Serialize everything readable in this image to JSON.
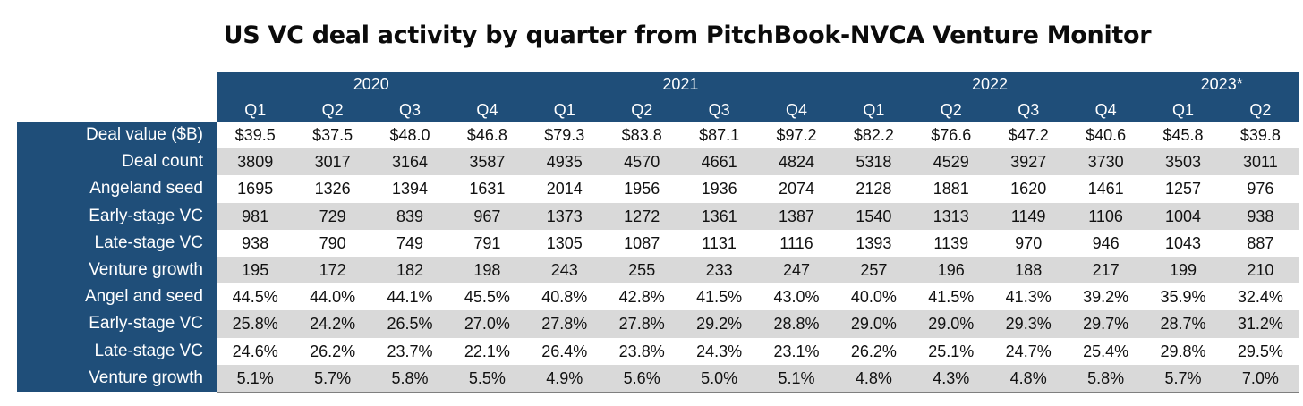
{
  "chart_data": {
    "type": "table",
    "title": "US VC deal activity by quarter from PitchBook-NVCA Venture Monitor",
    "years": [
      {
        "label": "2020",
        "quarters": 4
      },
      {
        "label": "2021",
        "quarters": 4
      },
      {
        "label": "2022",
        "quarters": 4
      },
      {
        "label": "2023*",
        "quarters": 2
      }
    ],
    "columns": [
      "Q1",
      "Q2",
      "Q3",
      "Q4",
      "Q1",
      "Q2",
      "Q3",
      "Q4",
      "Q1",
      "Q2",
      "Q3",
      "Q4",
      "Q1",
      "Q2"
    ],
    "rows": [
      {
        "label": "Deal value ($B)",
        "values": [
          "$39.5",
          "$37.5",
          "$48.0",
          "$46.8",
          "$79.3",
          "$83.8",
          "$87.1",
          "$97.2",
          "$82.2",
          "$76.6",
          "$47.2",
          "$40.6",
          "$45.8",
          "$39.8"
        ]
      },
      {
        "label": "Deal count",
        "values": [
          "3809",
          "3017",
          "3164",
          "3587",
          "4935",
          "4570",
          "4661",
          "4824",
          "5318",
          "4529",
          "3927",
          "3730",
          "3503",
          "3011"
        ]
      },
      {
        "label": "Angeland seed",
        "values": [
          "1695",
          "1326",
          "1394",
          "1631",
          "2014",
          "1956",
          "1936",
          "2074",
          "2128",
          "1881",
          "1620",
          "1461",
          "1257",
          "976"
        ]
      },
      {
        "label": "Early-stage VC",
        "values": [
          "981",
          "729",
          "839",
          "967",
          "1373",
          "1272",
          "1361",
          "1387",
          "1540",
          "1313",
          "1149",
          "1106",
          "1004",
          "938"
        ]
      },
      {
        "label": "Late-stage VC",
        "values": [
          "938",
          "790",
          "749",
          "791",
          "1305",
          "1087",
          "1131",
          "1116",
          "1393",
          "1139",
          "970",
          "946",
          "1043",
          "887"
        ]
      },
      {
        "label": "Venture growth",
        "values": [
          "195",
          "172",
          "182",
          "198",
          "243",
          "255",
          "233",
          "247",
          "257",
          "196",
          "188",
          "217",
          "199",
          "210"
        ]
      },
      {
        "label": "Angel and seed",
        "values": [
          "44.5%",
          "44.0%",
          "44.1%",
          "45.5%",
          "40.8%",
          "42.8%",
          "41.5%",
          "43.0%",
          "40.0%",
          "41.5%",
          "41.3%",
          "39.2%",
          "35.9%",
          "32.4%"
        ]
      },
      {
        "label": "Early-stage VC",
        "values": [
          "25.8%",
          "24.2%",
          "26.5%",
          "27.0%",
          "27.8%",
          "27.8%",
          "29.2%",
          "28.8%",
          "29.0%",
          "29.0%",
          "29.3%",
          "29.7%",
          "28.7%",
          "31.2%"
        ]
      },
      {
        "label": "Late-stage VC",
        "values": [
          "24.6%",
          "26.2%",
          "23.7%",
          "22.1%",
          "26.4%",
          "23.8%",
          "24.3%",
          "23.1%",
          "26.2%",
          "25.1%",
          "24.7%",
          "25.4%",
          "29.8%",
          "29.5%"
        ]
      },
      {
        "label": "Venture growth",
        "values": [
          "5.1%",
          "5.7%",
          "5.8%",
          "5.5%",
          "4.9%",
          "5.6%",
          "5.0%",
          "5.1%",
          "4.8%",
          "4.3%",
          "4.8%",
          "5.8%",
          "5.7%",
          "7.0%"
        ]
      }
    ]
  },
  "colors": {
    "header_bg": "#1f4e79",
    "stripe_bg": "#d9d9d9",
    "header_text": "#ffffff"
  }
}
